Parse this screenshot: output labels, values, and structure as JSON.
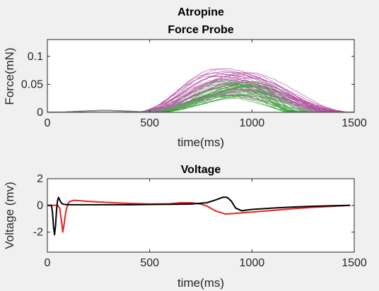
{
  "figure": {
    "title_line1": "Atropine",
    "title_line2": "Force Probe"
  },
  "chart_data": [
    {
      "type": "line",
      "title": "Force Probe",
      "xlabel": "time(ms)",
      "ylabel": "Force(mN)",
      "xlim": [
        0,
        1500
      ],
      "ylim": [
        0,
        0.13
      ],
      "xticks": [
        0,
        500,
        1000,
        1500
      ],
      "yticks": [
        0,
        0.05,
        0.1
      ],
      "xtick_labels": [
        "0",
        "500",
        "1000",
        "1500"
      ],
      "ytick_labels": [
        "0",
        "0.05",
        "0.1"
      ],
      "grid": false,
      "series": [
        {
          "group": "magenta-traces",
          "color": "#b2459e",
          "count": 30,
          "onset_ms": 450,
          "offset_ms": 1500,
          "peak_time_ms": [
            800,
            1000
          ],
          "peak_force_mN": [
            0.03,
            0.078
          ]
        },
        {
          "group": "green-traces",
          "color": "#3aa83a",
          "count": 25,
          "onset_ms": 520,
          "offset_ms": 1300,
          "peak_time_ms": [
            820,
            1050
          ],
          "peak_force_mN": [
            0.025,
            0.058
          ]
        },
        {
          "group": "gray-traces",
          "color": "#8a8a8a",
          "count": 10,
          "onset_ms": 460,
          "offset_ms": 1450,
          "peak_time_ms": [
            850,
            1000
          ],
          "peak_force_mN": [
            0.03,
            0.065
          ]
        }
      ]
    },
    {
      "type": "line",
      "title": "Voltage",
      "xlabel": "time(ms)",
      "ylabel": "Voltage (mv)",
      "xlim": [
        0,
        1500
      ],
      "ylim": [
        -3.5,
        2
      ],
      "xticks": [
        0,
        500,
        1000,
        1500
      ],
      "yticks": [
        -2,
        0,
        2
      ],
      "xtick_labels": [
        "0",
        "500",
        "1000",
        "1500"
      ],
      "ytick_labels": [
        "-2",
        "0",
        "2"
      ],
      "grid": false,
      "series": [
        {
          "color": "#e6231e",
          "x": [
            0,
            30,
            50,
            60,
            70,
            75,
            80,
            90,
            100,
            110,
            130,
            160,
            200,
            300,
            400,
            500,
            600,
            650,
            700,
            750,
            780,
            820,
            870,
            900,
            1000,
            1100,
            1200,
            1300,
            1400,
            1480
          ],
          "y": [
            0,
            0,
            0,
            -0.2,
            -1.3,
            -2.0,
            -1.6,
            -0.5,
            0.1,
            0.3,
            0.38,
            0.35,
            0.3,
            0.22,
            0.15,
            0.1,
            0.12,
            0.2,
            0.2,
            0.1,
            -0.05,
            -0.4,
            -0.65,
            -0.62,
            -0.5,
            -0.38,
            -0.25,
            -0.14,
            -0.06,
            0
          ]
        },
        {
          "color": "#000000",
          "x": [
            0,
            20,
            25,
            30,
            35,
            40,
            45,
            50,
            55,
            60,
            70,
            80,
            100,
            200,
            300,
            400,
            500,
            600,
            700,
            780,
            820,
            860,
            880,
            900,
            920,
            950,
            1000,
            1100,
            1200,
            1300,
            1400,
            1480
          ],
          "y": [
            0,
            0,
            -0.5,
            -1.6,
            -2.2,
            -1.5,
            -0.3,
            0.4,
            0.6,
            0.4,
            0.15,
            0.08,
            0.05,
            0.05,
            0.05,
            0.05,
            0.07,
            0.08,
            0.1,
            0.2,
            0.4,
            0.62,
            0.6,
            0.3,
            -0.2,
            -0.4,
            -0.3,
            -0.2,
            -0.12,
            -0.06,
            -0.02,
            0
          ]
        }
      ]
    }
  ]
}
